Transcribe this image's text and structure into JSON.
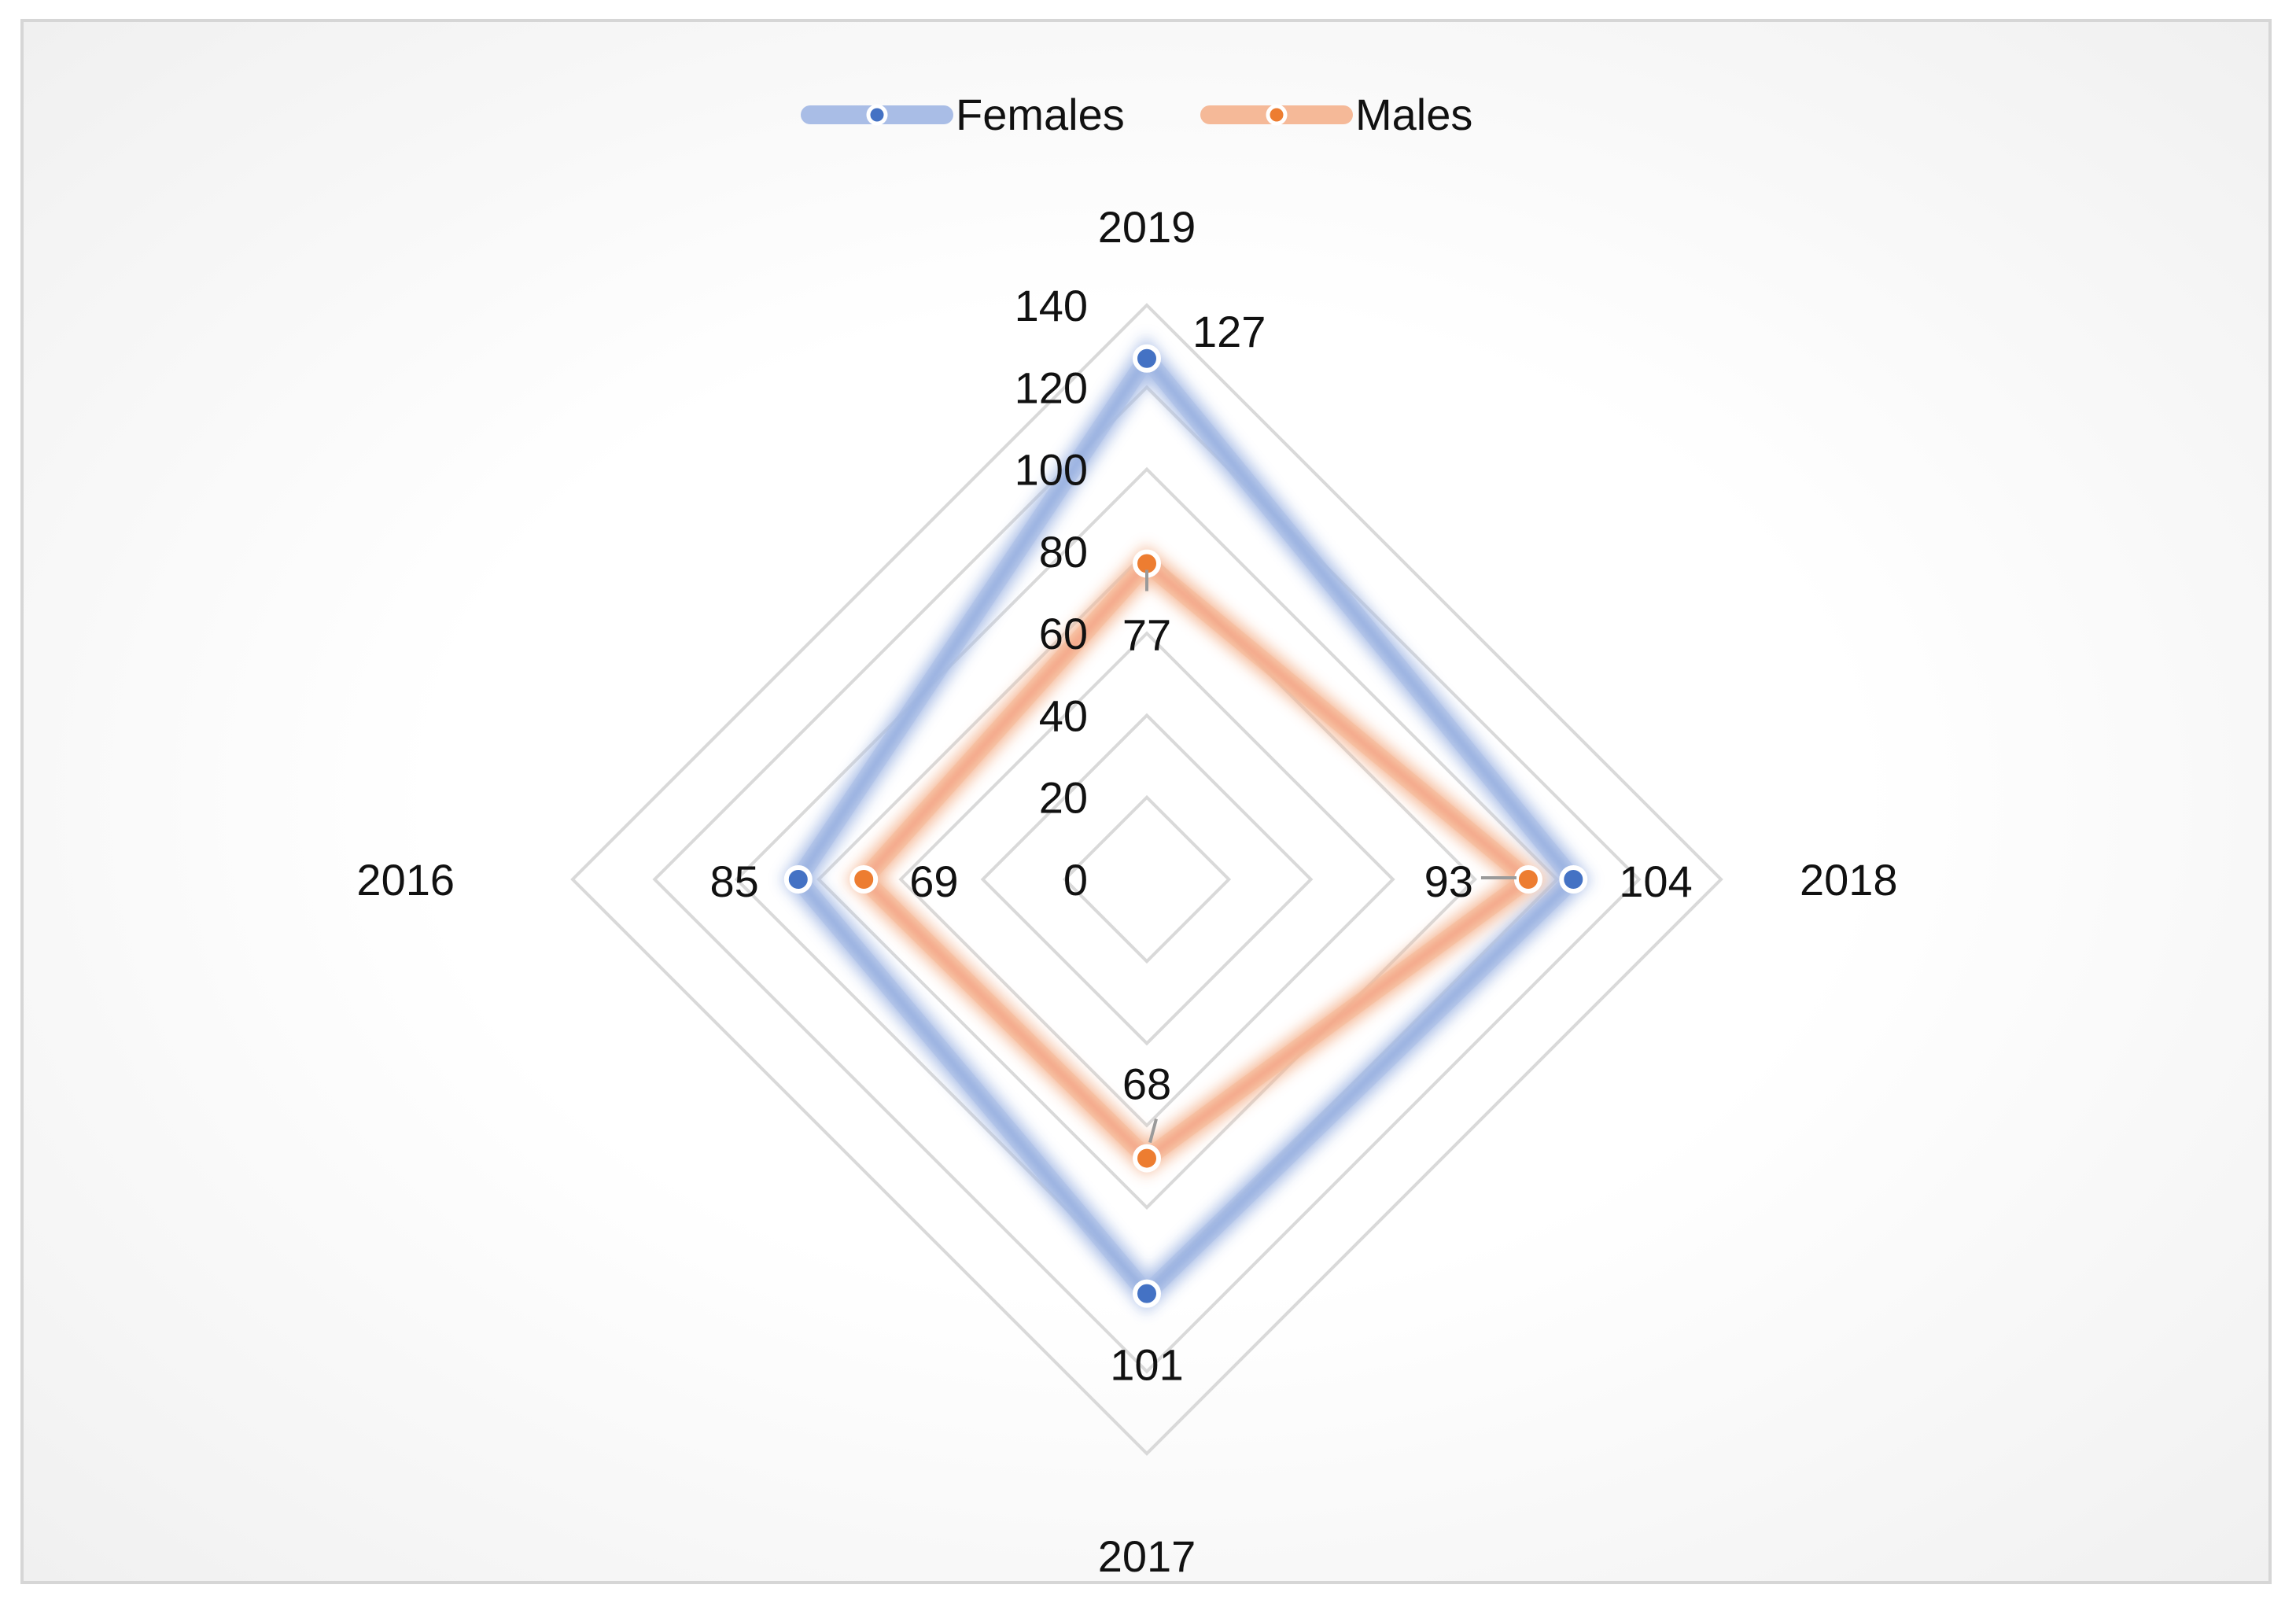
{
  "chart_data": {
    "type": "radar",
    "categories": [
      "2019",
      "2018",
      "2017",
      "2016"
    ],
    "axis": {
      "min": 0,
      "max": 140,
      "step": 20,
      "ticks": [
        "0",
        "20",
        "40",
        "60",
        "80",
        "100",
        "120",
        "140"
      ]
    },
    "series": [
      {
        "name": "Females",
        "values": [
          127,
          104,
          101,
          85
        ],
        "color": "#4472c4",
        "glow": "#a9bde6"
      },
      {
        "name": "Males",
        "values": [
          77,
          93,
          68,
          69
        ],
        "color": "#ed7d31",
        "glow": "#f5b998",
        "innerGlow": "#e8473c"
      }
    ],
    "legend": {
      "position": "top"
    },
    "grid": true
  }
}
